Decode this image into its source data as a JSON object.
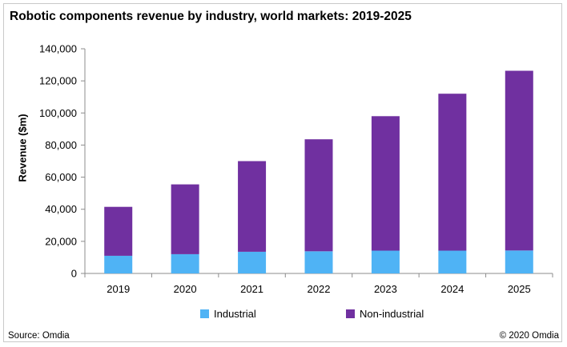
{
  "chart_data": {
    "type": "bar",
    "stacked": true,
    "title": "Robotic components revenue by industry, world markets: 2019-2025",
    "xlabel": "",
    "ylabel": "Revenue ($m)",
    "categories": [
      "2019",
      "2020",
      "2021",
      "2022",
      "2023",
      "2024",
      "2025"
    ],
    "ylim": [
      0,
      140000
    ],
    "yticks": [
      0,
      20000,
      40000,
      60000,
      80000,
      100000,
      120000,
      140000
    ],
    "ytick_labels": [
      "0",
      "20,000",
      "40,000",
      "60,000",
      "80,000",
      "100,000",
      "120,000",
      "140,000"
    ],
    "grid": false,
    "legend": "bottom",
    "series": [
      {
        "name": "Industrial",
        "color": "#4fb3f5",
        "values": [
          11000,
          12000,
          13500,
          13800,
          14200,
          14200,
          14300
        ]
      },
      {
        "name": "Non-industrial",
        "color": "#7030a0",
        "values": [
          30500,
          43500,
          56500,
          69800,
          83800,
          97800,
          112000
        ]
      }
    ]
  },
  "footer": {
    "source": "Source: Omdia",
    "copyright": "© 2020 Omdia"
  }
}
